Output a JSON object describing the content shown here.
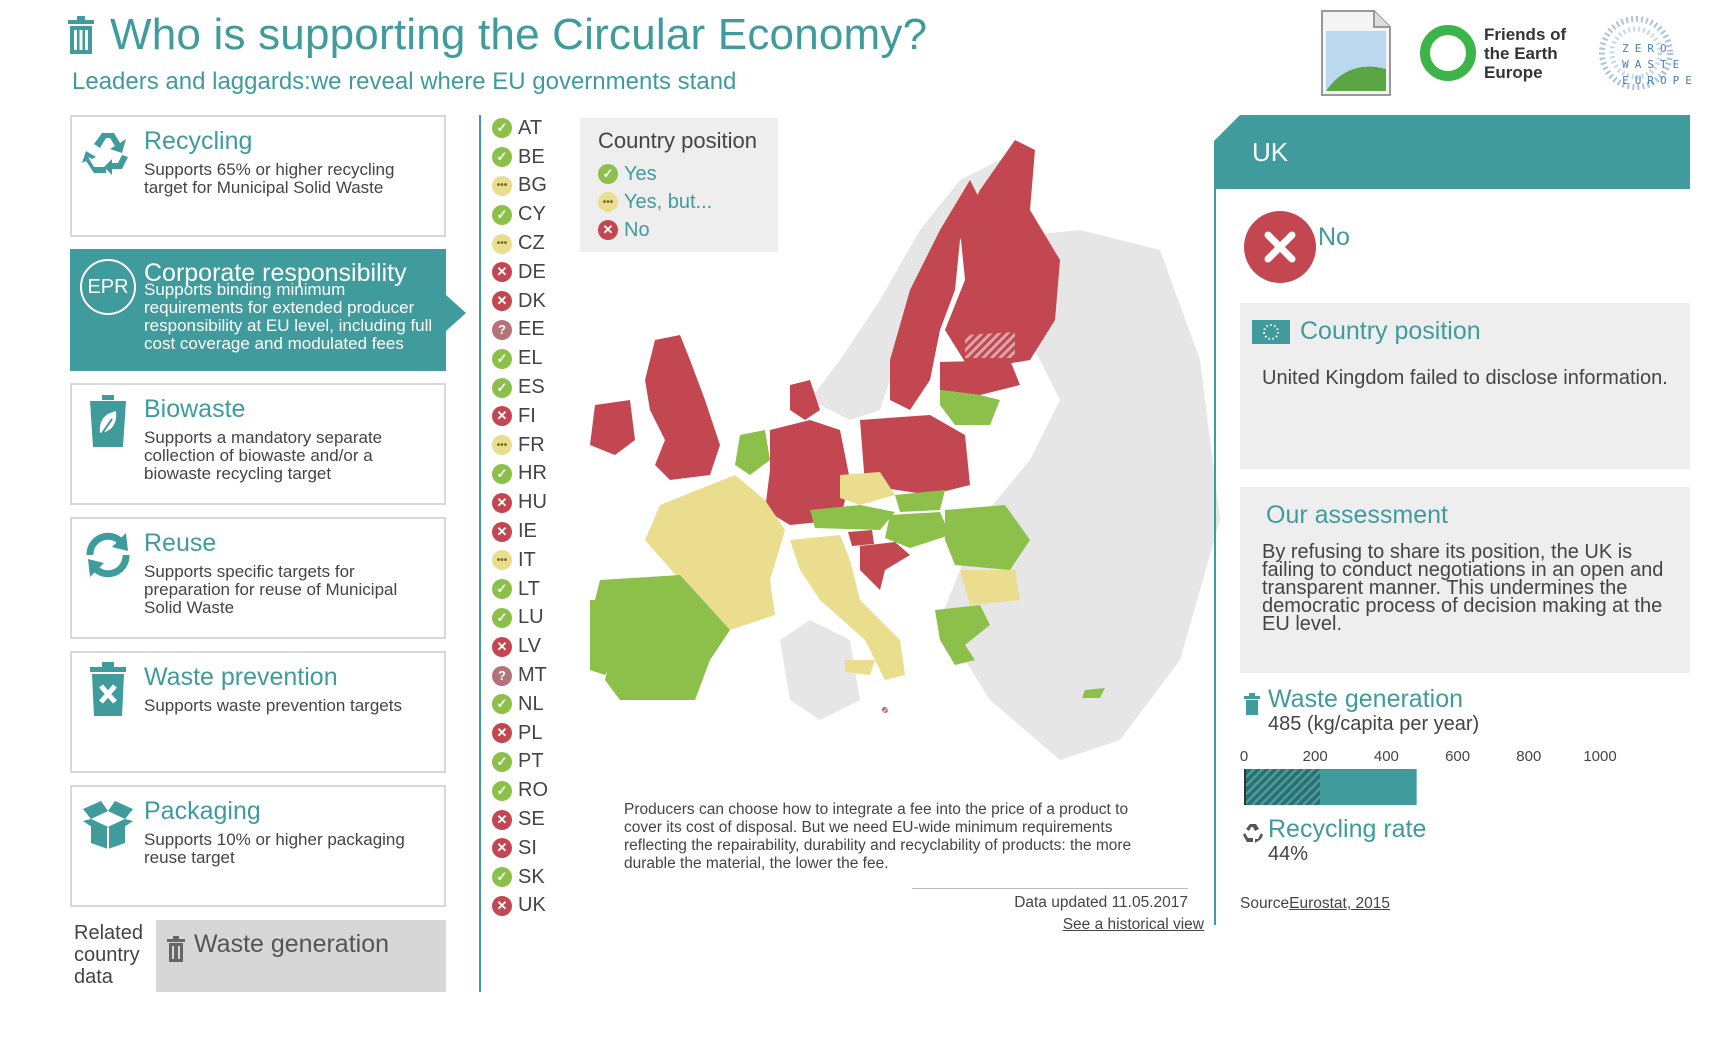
{
  "header": {
    "title": "Who is supporting the Circular Economy?",
    "subtitle": "Leaders and laggards:we reveal where EU governments stand",
    "logo_foe": [
      "Friends of",
      "the Earth",
      "Europe"
    ],
    "logo_zwe": [
      "ZERO",
      "WASTE",
      "EUROPE"
    ]
  },
  "criteria": [
    {
      "title": "Recycling",
      "desc": "Supports 65% or higher recycling target for Municipal Solid Waste",
      "icon": "recycle-icon"
    },
    {
      "title": "Corporate responsibility",
      "desc": "Supports binding minimum requirements for extended producer responsibility at EU level, including full cost coverage and modulated fees",
      "icon": "epr-icon",
      "badge": "EPR",
      "active": true
    },
    {
      "title": "Biowaste",
      "desc": "Supports a mandatory separate collection of biowaste and/or a biowaste recycling target",
      "icon": "biowaste-bin-icon"
    },
    {
      "title": "Reuse",
      "desc": "Supports specific targets for preparation for reuse of Municipal Solid Waste",
      "icon": "reuse-arrows-icon"
    },
    {
      "title": "Waste prevention",
      "desc": "Supports waste prevention targets",
      "icon": "trash-x-icon"
    },
    {
      "title": "Packaging",
      "desc": "Supports 10% or higher packaging reuse target",
      "icon": "box-icon"
    }
  ],
  "related": {
    "label": "Related country data",
    "button": "Waste generation"
  },
  "countries": [
    {
      "code": "AT",
      "status": "yes"
    },
    {
      "code": "BE",
      "status": "yes"
    },
    {
      "code": "BG",
      "status": "but"
    },
    {
      "code": "CY",
      "status": "yes"
    },
    {
      "code": "CZ",
      "status": "but"
    },
    {
      "code": "DE",
      "status": "no"
    },
    {
      "code": "DK",
      "status": "no"
    },
    {
      "code": "EE",
      "status": "unknown"
    },
    {
      "code": "EL",
      "status": "yes"
    },
    {
      "code": "ES",
      "status": "yes"
    },
    {
      "code": "FI",
      "status": "no"
    },
    {
      "code": "FR",
      "status": "but"
    },
    {
      "code": "HR",
      "status": "yes"
    },
    {
      "code": "HU",
      "status": "no"
    },
    {
      "code": "IE",
      "status": "no"
    },
    {
      "code": "IT",
      "status": "but"
    },
    {
      "code": "LT",
      "status": "yes"
    },
    {
      "code": "LU",
      "status": "yes"
    },
    {
      "code": "LV",
      "status": "no"
    },
    {
      "code": "MT",
      "status": "unknown"
    },
    {
      "code": "NL",
      "status": "yes"
    },
    {
      "code": "PL",
      "status": "no"
    },
    {
      "code": "PT",
      "status": "yes"
    },
    {
      "code": "RO",
      "status": "yes"
    },
    {
      "code": "SE",
      "status": "no"
    },
    {
      "code": "SI",
      "status": "no"
    },
    {
      "code": "SK",
      "status": "yes"
    },
    {
      "code": "UK",
      "status": "no"
    }
  ],
  "legend": {
    "title": "Country position",
    "items": [
      {
        "label": "Yes",
        "status": "yes"
      },
      {
        "label": "Yes, but...",
        "status": "but"
      },
      {
        "label": "No",
        "status": "no"
      }
    ]
  },
  "colors": {
    "teal": "#3f9b9c",
    "yes": "#8dc04a",
    "but": "#eadd8e",
    "no": "#c24750",
    "neutral": "#e6e6e6"
  },
  "note": "Producers can choose how to integrate a fee into the price of a product to cover its cost of disposal. But we need EU-wide minimum requirements reflecting the repairability, durability and recyclability of products: the more durable the material, the lower the fee.",
  "updated": "Data updated 11.05.2017",
  "historical_link": "See a historical view",
  "panel": {
    "country": "UK",
    "status": "No",
    "position_title": "Country position",
    "position_text": "United Kingdom failed to disclose information.",
    "assessment_title": "Our assessment",
    "assessment_text": "By refusing to share its position, the UK is failing to conduct negotiations in an open and transparent manner. This undermines the democratic process of decision making at the EU level.",
    "waste_title": "Waste generation",
    "waste_value": "485 (kg/capita per year)",
    "waste_kg": 485,
    "axis_ticks": [
      "0",
      "200",
      "400",
      "600",
      "800",
      "1000"
    ],
    "axis_max": 1000,
    "recycling_title": "Recycling rate",
    "recycling_value": "44%",
    "recycling_pct": 44,
    "source_label": "Source",
    "source_link": "Eurostat, 2015"
  }
}
